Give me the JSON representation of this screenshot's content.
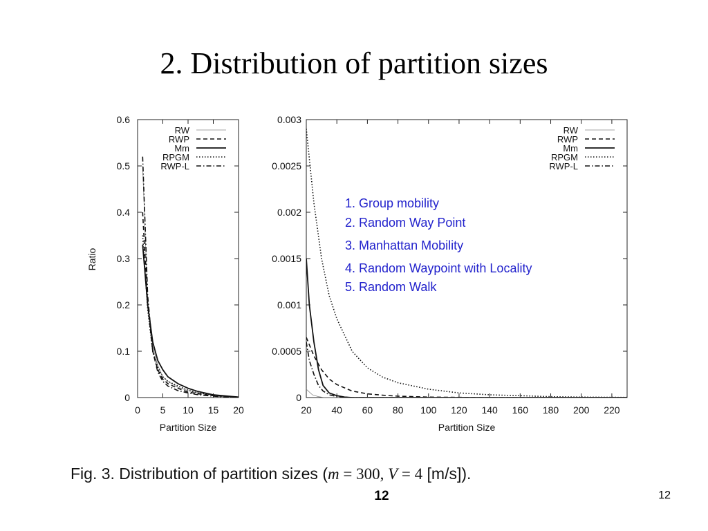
{
  "slide": {
    "title": "2. Distribution of partition sizes",
    "page_number_center": "12",
    "page_number_right": "12"
  },
  "caption": {
    "prefix": "Fig. 3. Distribution of partition sizes (",
    "m_var": "m",
    "m_eq": " = 300",
    "sep": ", ",
    "v_var": "V",
    "v_eq": " = 4",
    "suffix": " [m/s])."
  },
  "annotation": {
    "color": "#2222cc",
    "items": [
      "1. Group mobility",
      "2. Random Way Point",
      "3. Manhattan Mobility",
      "4. Random Waypoint with Locality",
      "5. Random Walk"
    ]
  },
  "chart_data": [
    {
      "type": "line",
      "xlabel": "Partition Size",
      "ylabel": "Ratio",
      "xlim": [
        0,
        20
      ],
      "ylim": [
        0,
        0.6
      ],
      "x_ticks": [
        "0",
        "5",
        "10",
        "15",
        "20"
      ],
      "y_ticks": [
        "0",
        "0.1",
        "0.2",
        "0.3",
        "0.4",
        "0.5",
        "0.6"
      ],
      "legend_position": "top-right",
      "series": [
        {
          "name": "RW",
          "style": "thin-solid",
          "points": [
            [
              1,
              0.5
            ],
            [
              2,
              0.21
            ],
            [
              3,
              0.11
            ],
            [
              4,
              0.07
            ],
            [
              5,
              0.045
            ],
            [
              6,
              0.035
            ],
            [
              8,
              0.022
            ],
            [
              10,
              0.015
            ],
            [
              12,
              0.01
            ],
            [
              15,
              0.005
            ],
            [
              18,
              0.002
            ],
            [
              20,
              0.001
            ]
          ]
        },
        {
          "name": "RWP",
          "style": "dashed",
          "points": [
            [
              1,
              0.4
            ],
            [
              2,
              0.2
            ],
            [
              3,
              0.1
            ],
            [
              4,
              0.06
            ],
            [
              5,
              0.04
            ],
            [
              6,
              0.03
            ],
            [
              8,
              0.02
            ],
            [
              10,
              0.012
            ],
            [
              12,
              0.008
            ],
            [
              15,
              0.004
            ],
            [
              18,
              0.002
            ],
            [
              20,
              0.001
            ]
          ]
        },
        {
          "name": "Mm",
          "style": "solid",
          "points": [
            [
              1,
              0.33
            ],
            [
              2,
              0.2
            ],
            [
              3,
              0.12
            ],
            [
              4,
              0.08
            ],
            [
              5,
              0.06
            ],
            [
              6,
              0.045
            ],
            [
              8,
              0.03
            ],
            [
              10,
              0.02
            ],
            [
              12,
              0.013
            ],
            [
              15,
              0.006
            ],
            [
              18,
              0.003
            ],
            [
              20,
              0.001
            ]
          ]
        },
        {
          "name": "RPGM",
          "style": "dotted",
          "points": [
            [
              1,
              0.35
            ],
            [
              2,
              0.19
            ],
            [
              3,
              0.1
            ],
            [
              4,
              0.065
            ],
            [
              5,
              0.045
            ],
            [
              6,
              0.035
            ],
            [
              8,
              0.025
            ],
            [
              10,
              0.016
            ],
            [
              12,
              0.01
            ],
            [
              15,
              0.005
            ],
            [
              18,
              0.002
            ],
            [
              20,
              0.001
            ]
          ]
        },
        {
          "name": "RWP-L",
          "style": "dash-dot",
          "points": [
            [
              1,
              0.52
            ],
            [
              2,
              0.22
            ],
            [
              3,
              0.1
            ],
            [
              4,
              0.055
            ],
            [
              5,
              0.035
            ],
            [
              6,
              0.025
            ],
            [
              8,
              0.015
            ],
            [
              10,
              0.01
            ],
            [
              12,
              0.006
            ],
            [
              15,
              0.003
            ],
            [
              18,
              0.001
            ],
            [
              20,
              0.0005
            ]
          ]
        }
      ]
    },
    {
      "type": "line",
      "xlabel": "Partition Size",
      "ylabel": "",
      "xlim": [
        20,
        230
      ],
      "ylim": [
        0,
        0.003
      ],
      "x_ticks": [
        "20",
        "40",
        "60",
        "80",
        "100",
        "120",
        "140",
        "160",
        "180",
        "200",
        "220"
      ],
      "y_ticks": [
        "0",
        "0.0005",
        "0.001",
        "0.0015",
        "0.002",
        "0.0025",
        "0.003"
      ],
      "legend_position": "top-right",
      "series": [
        {
          "name": "RW",
          "style": "thin-solid",
          "points": [
            [
              20,
              9e-05
            ],
            [
              24,
              3e-05
            ],
            [
              28,
              1e-05
            ],
            [
              32,
              0.0
            ],
            [
              230,
              0.0
            ]
          ]
        },
        {
          "name": "RWP",
          "style": "dashed",
          "points": [
            [
              20,
              0.00065
            ],
            [
              25,
              0.00045
            ],
            [
              30,
              0.0003
            ],
            [
              35,
              0.0002
            ],
            [
              40,
              0.00014
            ],
            [
              50,
              7e-05
            ],
            [
              60,
              4e-05
            ],
            [
              70,
              2.5e-05
            ],
            [
              80,
              1.5e-05
            ],
            [
              100,
              5e-06
            ],
            [
              120,
              2e-06
            ],
            [
              140,
              0.0
            ],
            [
              230,
              0.0
            ]
          ]
        },
        {
          "name": "Mm",
          "style": "solid",
          "points": [
            [
              20,
              0.0015
            ],
            [
              22,
              0.001
            ],
            [
              25,
              0.0006
            ],
            [
              28,
              0.0003
            ],
            [
              31,
              0.00013
            ],
            [
              35,
              5e-05
            ],
            [
              40,
              2e-05
            ],
            [
              45,
              5e-06
            ],
            [
              50,
              0.0
            ],
            [
              230,
              0.0
            ]
          ]
        },
        {
          "name": "RPGM",
          "style": "dotted",
          "points": [
            [
              20,
              0.0029
            ],
            [
              25,
              0.0021
            ],
            [
              30,
              0.0015
            ],
            [
              35,
              0.0011
            ],
            [
              40,
              0.00085
            ],
            [
              50,
              0.0005
            ],
            [
              60,
              0.00032
            ],
            [
              70,
              0.00022
            ],
            [
              80,
              0.00016
            ],
            [
              100,
              9e-05
            ],
            [
              120,
              5e-05
            ],
            [
              140,
              3e-05
            ],
            [
              160,
              2e-05
            ],
            [
              180,
              1e-05
            ],
            [
              200,
              5e-06
            ],
            [
              230,
              2e-06
            ]
          ]
        },
        {
          "name": "RWP-L",
          "style": "dash-dot",
          "points": [
            [
              20,
              0.0006
            ],
            [
              22,
              0.0004
            ],
            [
              25,
              0.00025
            ],
            [
              28,
              0.00013
            ],
            [
              31,
              7e-05
            ],
            [
              35,
              3e-05
            ],
            [
              40,
              1e-05
            ],
            [
              50,
              0.0
            ],
            [
              230,
              0.0
            ]
          ]
        }
      ]
    }
  ]
}
